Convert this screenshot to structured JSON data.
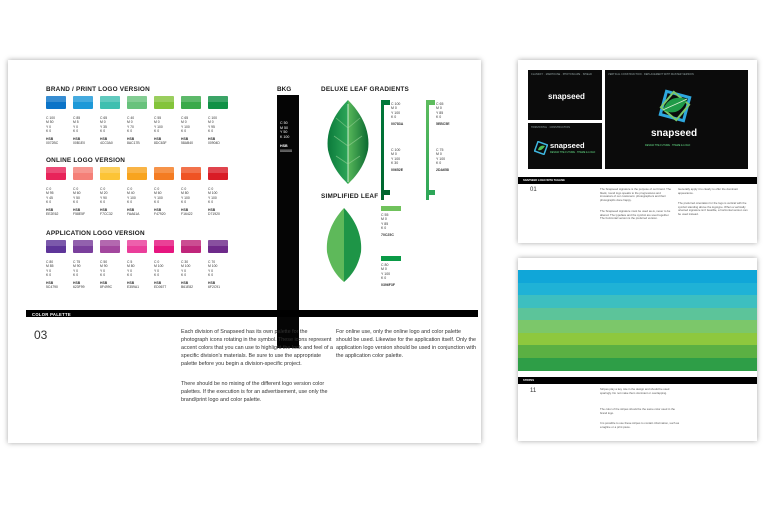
{
  "main_page": {
    "brand": {
      "title": "BRAND / PRINT LOGO VERSION",
      "swatches": [
        {
          "color": "#0c74c8",
          "cmyk": "C 100\nM 50\nY 0\nK 0",
          "hsb": "0072BC"
        },
        {
          "color": "#1e99d8",
          "cmyk": "C 85\nM 5\nY 0\nK 0",
          "hsb": "00B1E0"
        },
        {
          "color": "#3fbfb0",
          "cmyk": "C 65\nM 0\nY 35\nK 0",
          "hsb": "4CC0A0"
        },
        {
          "color": "#68c27c",
          "cmyk": "C 40\nM 0\nY 70\nK 0",
          "hsb": "8AC17B"
        },
        {
          "color": "#84c43b",
          "cmyk": "C 55\nM 0\nY 100\nK 0",
          "hsb": "8DC63F"
        },
        {
          "color": "#3aaa4a",
          "cmyk": "C 65\nM 0\nY 100\nK 0",
          "hsb": "58AB40"
        },
        {
          "color": "#119146",
          "cmyk": "C 100\nM 0\nY 95\nK 0",
          "hsb": "00904D"
        }
      ]
    },
    "online": {
      "title": "ONLINE LOGO VERSION",
      "swatches": [
        {
          "color": "#e8245a",
          "cmyk": "C 0\nM 95\nY 45\nK 0",
          "hsb": "EE2E62"
        },
        {
          "color": "#f58078",
          "cmyk": "C 0\nM 60\nY 50\nK 0",
          "hsb": "F58E5F"
        },
        {
          "color": "#fcc436",
          "cmyk": "C 0\nM 20\nY 90\nK 0",
          "hsb": "F7CC32"
        },
        {
          "color": "#f8a41e",
          "cmyk": "C 0\nM 40\nY 100\nK 0",
          "hsb": "FAA61A"
        },
        {
          "color": "#f47c22",
          "cmyk": "C 0\nM 60\nY 100\nK 0",
          "hsb": "F47920"
        },
        {
          "color": "#ef5324",
          "cmyk": "C 0\nM 80\nY 100\nK 0",
          "hsb": "F16422"
        },
        {
          "color": "#d91c26",
          "cmyk": "C 0\nM 100\nY 100\nK 0",
          "hsb": "D71920"
        }
      ]
    },
    "application": {
      "title": "APPLICATION LOGO VERSION",
      "swatches": [
        {
          "color": "#5e3599",
          "cmyk": "C 80\nM 85\nY 0\nK 0",
          "hsb": "5C4790"
        },
        {
          "color": "#7a3f9c",
          "cmyk": "C 75\nM 90\nY 0\nK 0",
          "hsb": "623F99"
        },
        {
          "color": "#a3479e",
          "cmyk": "C 50\nM 90\nY 0\nK 0",
          "hsb": "8F499C"
        },
        {
          "color": "#ea3e9a",
          "cmyk": "C 5\nM 80\nY 0\nK 0",
          "hsb": "E359A1"
        },
        {
          "color": "#e6167f",
          "cmyk": "C 0\nM 100\nY 0\nK 0",
          "hsb": "ED0677"
        },
        {
          "color": "#c0267b",
          "cmyk": "C 30\nM 100\nY 0\nK 0",
          "hsb": "B61E82"
        },
        {
          "color": "#6e2a8a",
          "cmyk": "C 70\nM 100\nY 0\nK 0",
          "hsb": "6F2C91"
        }
      ]
    },
    "bkg": {
      "label": "BKG",
      "cmyk": "C 50\nM 50\nY 50\nK 100",
      "hsb_label": "HSB",
      "hsb": "000000"
    },
    "deluxe": {
      "title": "DELUXE LEAF GRADIENTS",
      "codes": [
        {
          "cmyk": "C 100\nM 0\nY 100\nK 0",
          "hsb": "00783A"
        },
        {
          "cmyk": "C 65\nM 0\nY 85\nK 0",
          "hsb": "5EBC5E"
        },
        {
          "cmyk": "C 100\nM 0\nY 100\nK 30",
          "hsb": "00652E"
        },
        {
          "cmyk": "C 75\nM 0\nY 100\nK 0",
          "hsb": "2DA658"
        }
      ]
    },
    "simplified": {
      "title": "SIMPLIFIED LEAF",
      "codes": [
        {
          "cmyk": "C 55\nM 0\nY 85\nK 0",
          "hsb": "70C25C"
        },
        {
          "cmyk": "C 80\nM 0\nY 100\nK 0",
          "hsb": "0396F3F"
        }
      ]
    },
    "section_band": "COLOR PALETTE",
    "page_number": "03",
    "paragraph_left": "Each division of Snapseed has its own palette for the photograph icons rotating in the symbol. These icons represent accent colors that you can use to highlight the look and feel of a specific division's materials. Be sure to use the appropriate palette before you begin a division-specific project.",
    "paragraph_left_2": "There should be no mixing of the different logo version color palettes. If the execution is for an advertisement, use only the brand/print logo and color palette.",
    "paragraph_right": "For online use, only the online logo and color palette should be used. Likewise for the application itself. Only the application logo version should be used in conjunction with the application color palette."
  },
  "spread_top": {
    "heading_left": "CLASSIFY · MADHOUSE · PHOTOSCAPE · SHIELD",
    "heading_right": "VERTICAL CONSTRUCTION · REPLACEMENT WITH MASTER VERSION",
    "heading_small": "HORIZONTAL · CONSTRUCTION",
    "logo_word": "snapseed",
    "tagline_small": "DESIGN THE FUTURE · THEME & LOGO",
    "tagline_large": "DESIGN THE FUTURE · THEME & LOGO",
    "band": "SNAPSEED LOGO WITH TAGLINE",
    "page_number": "01",
    "text_a": "The Snapseed signature is the purpose of our brand. The black, round logo speaks to the progressives and innovators of our customers: photographers and their photographs done happy.",
    "text_b": "The Snapseed signature must be used as-is, never to be altered. The typeface and the symbol are used together. The horizontal version is the preferred version.",
    "text_c": "Generally apply it to clearly to offer the dominant appearance.",
    "text_d": "The preferred orientation for the logo is vertical with the symbol standing above the logotype. When a vertically oriented signature isn't feasible, a horizontal version can be used instead."
  },
  "spread_bottom": {
    "stripes": [
      "#10a6d8",
      "#1fb2d6",
      "#3dbfc0",
      "#5cc49a",
      "#7cc76a",
      "#8ec83e",
      "#5bb043",
      "#2e9e47"
    ],
    "band": "STRIPES",
    "page_number": "11",
    "text_a": "Stripes play a key role in the design and should be used sparingly. Do not make them dominant or overlapping.",
    "text_b": "The color of the stripes should be the same color used in the brand logo.",
    "text_c": "It is possible to use these stripes to contain information, such as a tagline or a print piece."
  }
}
